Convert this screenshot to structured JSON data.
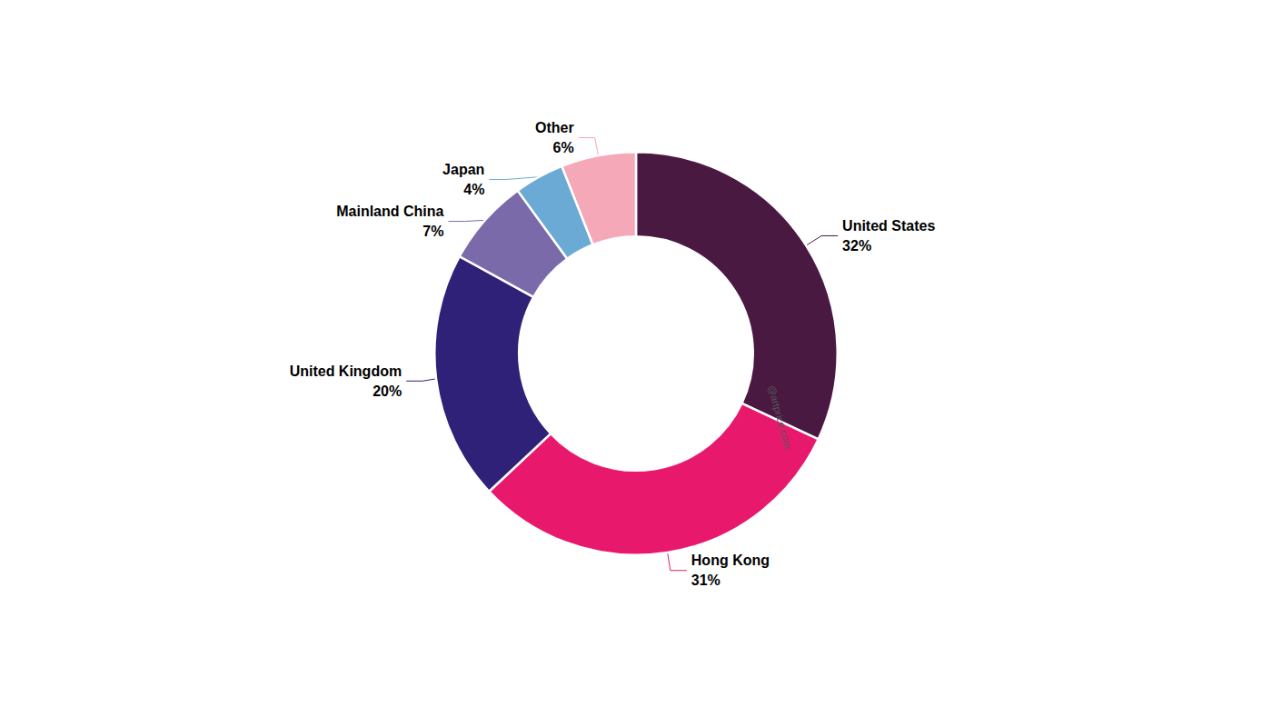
{
  "chart_data": {
    "type": "donut",
    "categories": [
      "United States",
      "Hong Kong",
      "United Kingdom",
      "Mainland China",
      "Japan",
      "Other"
    ],
    "values": [
      32,
      31,
      20,
      7,
      4,
      6
    ],
    "value_labels": [
      "32%",
      "31%",
      "20%",
      "7%",
      "4%",
      "6%"
    ],
    "colors": [
      "#4a1942",
      "#e8196d",
      "#2e2177",
      "#7a6aaa",
      "#6aaad4",
      "#f4a8b8"
    ],
    "data_labels": true,
    "annotations": [
      "@artprice.com"
    ]
  }
}
